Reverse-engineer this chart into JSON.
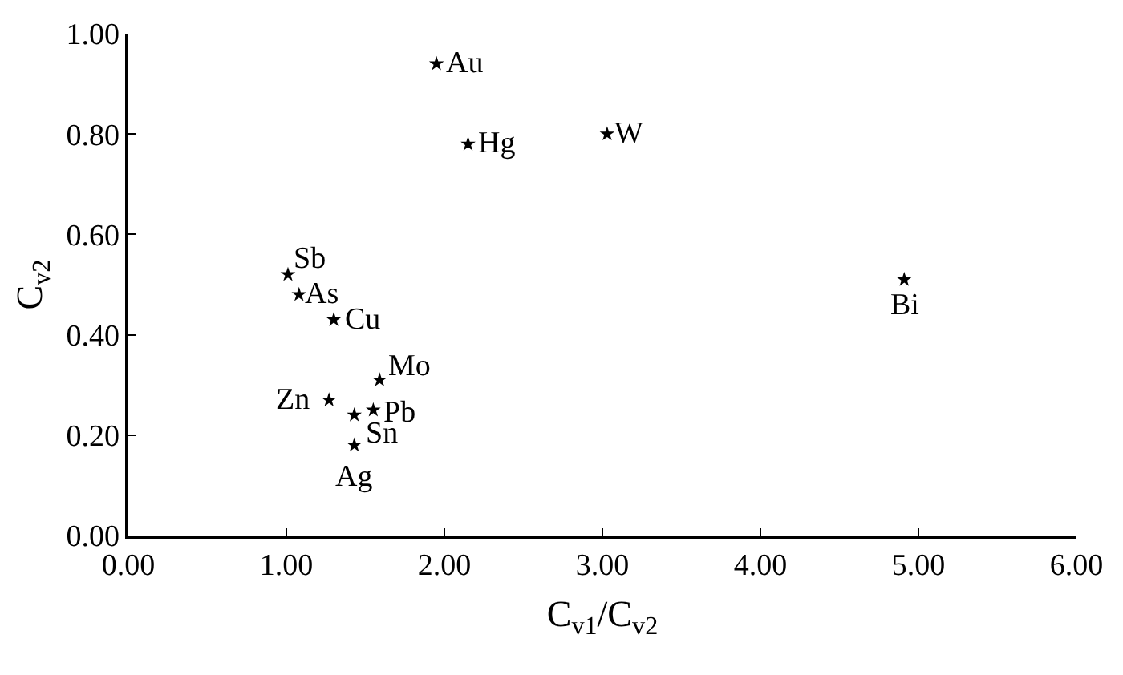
{
  "chart_data": {
    "type": "scatter",
    "xlabel": "C$_{v1}$/C$_{v2}$",
    "ylabel": "C$_{v2}$",
    "x": [
      1.95,
      2.15,
      3.03,
      4.91,
      1.01,
      1.08,
      1.3,
      1.59,
      1.27,
      1.55,
      1.43,
      1.43
    ],
    "series": [
      {
        "color": "#000000",
        "values": [
          0.94,
          0.78,
          0.8,
          0.51,
          0.52,
          0.48,
          0.43,
          0.31,
          0.27,
          0.25,
          0.24,
          0.18
        ]
      }
    ],
    "annotations": [
      {
        "text": "Au",
        "x": 1.95,
        "y": 0.94
      },
      {
        "text": "Hg",
        "x": 2.15,
        "y": 0.78
      },
      {
        "text": "W",
        "x": 3.03,
        "y": 0.8
      },
      {
        "text": "Bi",
        "x": 4.91,
        "y": 0.51
      },
      {
        "text": "Sb",
        "x": 1.01,
        "y": 0.52
      },
      {
        "text": "As",
        "x": 1.08,
        "y": 0.48
      },
      {
        "text": "Cu",
        "x": 1.3,
        "y": 0.43
      },
      {
        "text": "Mo",
        "x": 1.59,
        "y": 0.31
      },
      {
        "text": "Zn",
        "x": 1.27,
        "y": 0.27
      },
      {
        "text": "Pb",
        "x": 1.55,
        "y": 0.25
      },
      {
        "text": "Sn",
        "x": 1.43,
        "y": 0.24
      },
      {
        "text": "Ag",
        "x": 1.43,
        "y": 0.18
      }
    ],
    "xlim": [
      0,
      6
    ],
    "xticks": [
      {
        "value": 0,
        "label": "0.00"
      },
      {
        "value": 1,
        "label": "1.00"
      },
      {
        "value": 2,
        "label": "2.00"
      },
      {
        "value": 3,
        "label": "3.00"
      },
      {
        "value": 4,
        "label": "4.00"
      },
      {
        "value": 5,
        "label": "5.00"
      },
      {
        "value": 6,
        "label": "6.00"
      }
    ],
    "ylim": [
      0,
      1
    ],
    "yticks": [
      {
        "value": 0,
        "label": "0.00"
      },
      {
        "value": 0.2,
        "label": "0.20"
      },
      {
        "value": 0.4,
        "label": "0.40"
      },
      {
        "value": 0.6,
        "label": "0.60"
      },
      {
        "value": 0.8,
        "label": "0.80"
      },
      {
        "value": 1,
        "label": "1.00"
      }
    ],
    "grid": false,
    "marker": "star"
  }
}
